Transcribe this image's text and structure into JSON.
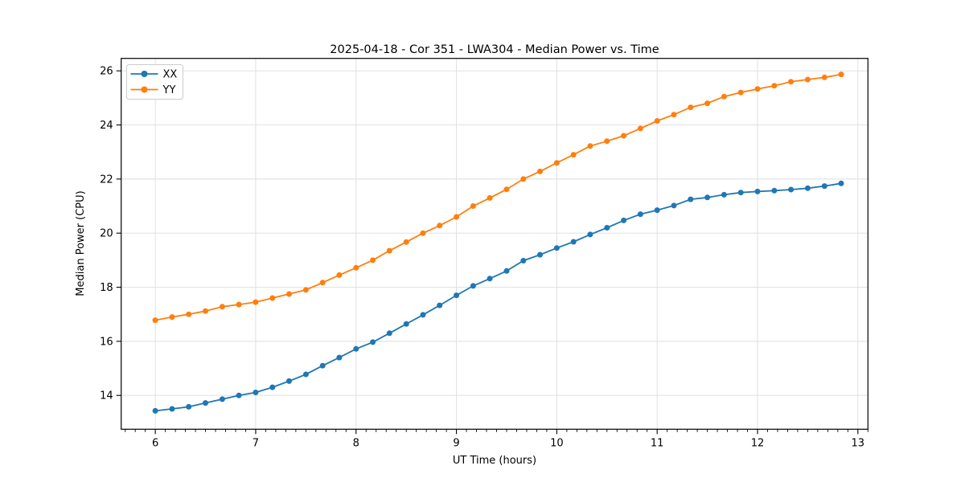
{
  "chart_data": {
    "type": "line",
    "title": "2025-04-18 - Cor 351 - LWA304 - Median Power vs. Time",
    "xlabel": "UT Time (hours)",
    "ylabel": "Median Power (CPU)",
    "xlim": [
      5.66,
      13.1
    ],
    "ylim": [
      12.75,
      26.46
    ],
    "xticks": [
      6,
      7,
      8,
      9,
      10,
      11,
      12,
      13
    ],
    "yticks": [
      14,
      16,
      18,
      20,
      22,
      24,
      26
    ],
    "x_minor_step": 0.1,
    "grid": true,
    "grid_color": "#dedede",
    "legend_position": "upper left",
    "marker": "circle",
    "x": [
      6.0,
      6.167,
      6.333,
      6.5,
      6.667,
      6.833,
      7.0,
      7.167,
      7.333,
      7.5,
      7.667,
      7.833,
      8.0,
      8.167,
      8.333,
      8.5,
      8.667,
      8.833,
      9.0,
      9.167,
      9.333,
      9.5,
      9.667,
      9.833,
      10.0,
      10.167,
      10.333,
      10.5,
      10.667,
      10.833,
      11.0,
      11.167,
      11.333,
      11.5,
      11.667,
      11.833,
      12.0,
      12.167,
      12.333,
      12.5,
      12.667,
      12.833
    ],
    "series": [
      {
        "name": "XX",
        "color": "#1f77b4",
        "values": [
          13.43,
          13.5,
          13.58,
          13.72,
          13.86,
          14.0,
          14.11,
          14.3,
          14.53,
          14.78,
          15.1,
          15.4,
          15.72,
          15.97,
          16.3,
          16.64,
          16.98,
          17.33,
          17.7,
          18.05,
          18.32,
          18.6,
          18.98,
          19.2,
          19.45,
          19.68,
          19.95,
          20.2,
          20.47,
          20.7,
          20.85,
          21.02,
          21.25,
          21.32,
          21.42,
          21.5,
          21.54,
          21.57,
          21.61,
          21.66,
          21.74,
          21.84
        ]
      },
      {
        "name": "YY",
        "color": "#ff7f0e",
        "values": [
          16.78,
          16.9,
          17.0,
          17.12,
          17.28,
          17.36,
          17.45,
          17.6,
          17.75,
          17.9,
          18.17,
          18.45,
          18.72,
          19.0,
          19.35,
          19.67,
          20.0,
          20.28,
          20.6,
          21.0,
          21.3,
          21.62,
          22.0,
          22.28,
          22.6,
          22.9,
          23.22,
          23.4,
          23.6,
          23.87,
          24.15,
          24.38,
          24.65,
          24.8,
          25.05,
          25.2,
          25.33,
          25.45,
          25.6,
          25.68,
          25.76,
          25.87
        ]
      }
    ]
  }
}
